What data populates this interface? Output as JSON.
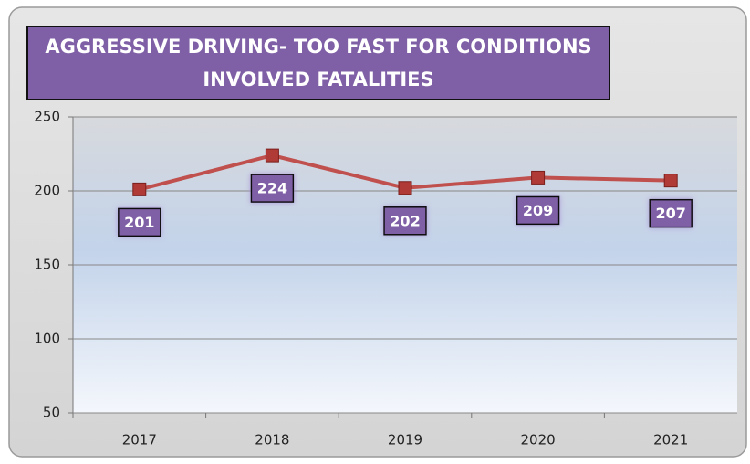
{
  "chart_data": {
    "type": "line",
    "title": [
      "AGGRESSIVE DRIVING- TOO FAST FOR CONDITIONS",
      "INVOLVED FATALITIES"
    ],
    "categories": [
      "2017",
      "2018",
      "2019",
      "2020",
      "2021"
    ],
    "series": [
      {
        "name": "Fatalities",
        "color": "#c0504d",
        "values": [
          201,
          224,
          202,
          209,
          207
        ]
      }
    ],
    "ylim": [
      50,
      250
    ],
    "yticks": [
      50,
      100,
      150,
      200,
      250
    ],
    "grid": true,
    "data_labels": true
  }
}
